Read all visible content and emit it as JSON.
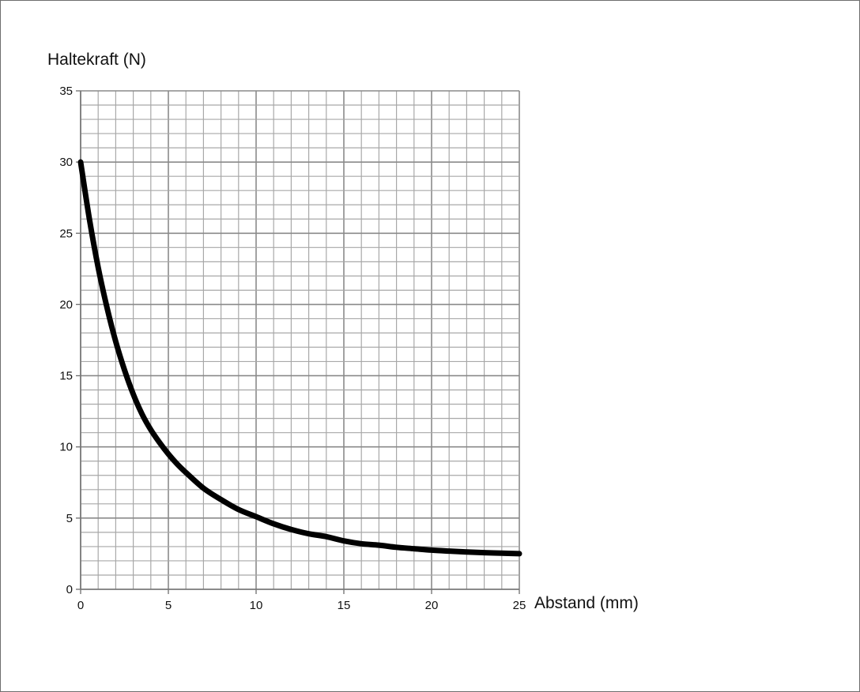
{
  "chart_data": {
    "type": "line",
    "title": "",
    "xlabel": "Abstand (mm)",
    "ylabel": "Haltekraft (N)",
    "xlim": [
      0,
      25
    ],
    "ylim": [
      0,
      35
    ],
    "x_ticks": [
      "0",
      "5",
      "10",
      "15",
      "20",
      "25"
    ],
    "y_ticks": [
      "0",
      "5",
      "10",
      "15",
      "20",
      "25",
      "30",
      "35"
    ],
    "grid": true,
    "grid_minor_step_x": 1,
    "grid_minor_step_y": 1,
    "series": [
      {
        "color": "#000000",
        "x": [
          0,
          0.5,
          1,
          1.5,
          2,
          2.5,
          3,
          3.5,
          4,
          4.5,
          5,
          5.5,
          6,
          7,
          8,
          9,
          10,
          11,
          12,
          13,
          14,
          15,
          16,
          17,
          18,
          19,
          20,
          21,
          22,
          23,
          24,
          25
        ],
        "y": [
          30.0,
          26.0,
          22.6,
          19.8,
          17.4,
          15.4,
          13.7,
          12.3,
          11.2,
          10.3,
          9.5,
          8.8,
          8.2,
          7.1,
          6.3,
          5.6,
          5.1,
          4.6,
          4.2,
          3.9,
          3.7,
          3.4,
          3.2,
          3.1,
          2.95,
          2.85,
          2.75,
          2.68,
          2.62,
          2.57,
          2.54,
          2.5
        ]
      }
    ]
  }
}
